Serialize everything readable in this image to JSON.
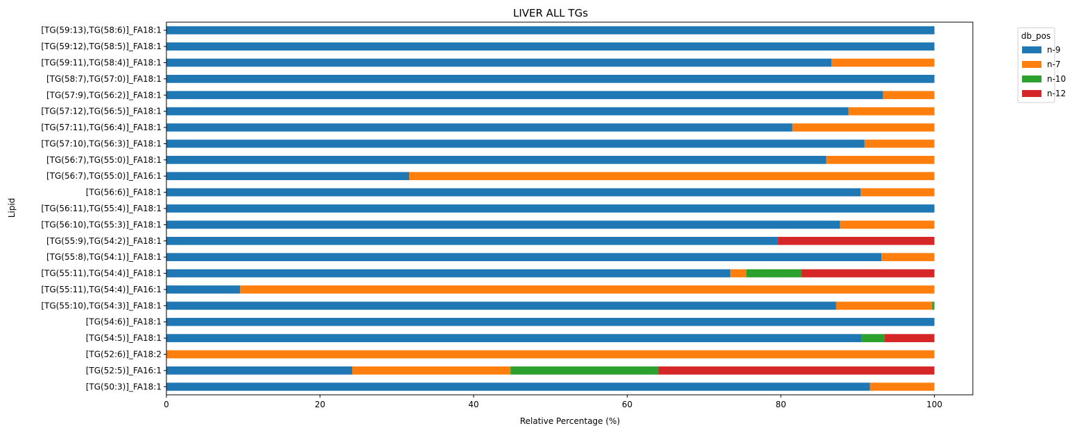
{
  "chart_data": {
    "type": "bar",
    "orientation": "horizontal",
    "stacked": true,
    "title": "LIVER ALL TGs",
    "xlabel": "Relative Percentage (%)",
    "ylabel": "Lipid",
    "xlim": [
      0,
      105
    ],
    "xticks": [
      0,
      20,
      40,
      60,
      80,
      100
    ],
    "grid": false,
    "legend": {
      "title": "db_pos",
      "placement": "outside-top-right"
    },
    "categories": [
      "[TG(59:13),TG(58:6)]_FA18:1",
      "[TG(59:12),TG(58:5)]_FA18:1",
      "[TG(59:11),TG(58:4)]_FA18:1",
      "[TG(58:7),TG(57:0)]_FA18:1",
      "[TG(57:9),TG(56:2)]_FA18:1",
      "[TG(57:12),TG(56:5)]_FA18:1",
      "[TG(57:11),TG(56:4)]_FA18:1",
      "[TG(57:10),TG(56:3)]_FA18:1",
      "[TG(56:7),TG(55:0)]_FA18:1",
      "[TG(56:7),TG(55:0)]_FA16:1",
      "[TG(56:6)]_FA18:1",
      "[TG(56:11),TG(55:4)]_FA18:1",
      "[TG(56:10),TG(55:3)]_FA18:1",
      "[TG(55:9),TG(54:2)]_FA18:1",
      "[TG(55:8),TG(54:1)]_FA18:1",
      "[TG(55:11),TG(54:4)]_FA18:1",
      "[TG(55:11),TG(54:4)]_FA16:1",
      "[TG(55:10),TG(54:3)]_FA18:1",
      "[TG(54:6)]_FA18:1",
      "[TG(54:5)]_FA18:1",
      "[TG(52:6)]_FA18:2",
      "[TG(52:5)]_FA16:1",
      "[TG(50:3)]_FA18:1"
    ],
    "series": [
      {
        "name": "n-9",
        "color": "#1f77b4",
        "values": [
          100,
          100,
          86.6,
          100,
          93.3,
          88.8,
          81.5,
          90.9,
          85.9,
          31.6,
          90.4,
          100,
          87.7,
          79.6,
          93.1,
          73.4,
          9.6,
          87.2,
          100,
          90.5,
          0,
          24.2,
          91.6
        ]
      },
      {
        "name": "n-7",
        "color": "#ff7f0e",
        "values": [
          0,
          0,
          13.4,
          0,
          6.7,
          11.2,
          18.5,
          9.1,
          14.1,
          68.4,
          9.6,
          0,
          12.3,
          0,
          6.9,
          2.1,
          90.4,
          12.5,
          0,
          0,
          100,
          20.6,
          8.4
        ]
      },
      {
        "name": "n-10",
        "color": "#2ca02c",
        "values": [
          0,
          0,
          0,
          0,
          0,
          0,
          0,
          0,
          0,
          0,
          0,
          0,
          0,
          0,
          0,
          7.2,
          0,
          0.3,
          0,
          3.0,
          0,
          19.3,
          0
        ]
      },
      {
        "name": "n-12",
        "color": "#d62728",
        "values": [
          0,
          0,
          0,
          0,
          0,
          0,
          0,
          0,
          0,
          0,
          0,
          0,
          0,
          20.4,
          0,
          17.3,
          0,
          0,
          0,
          6.5,
          0,
          35.9,
          0
        ]
      }
    ]
  }
}
